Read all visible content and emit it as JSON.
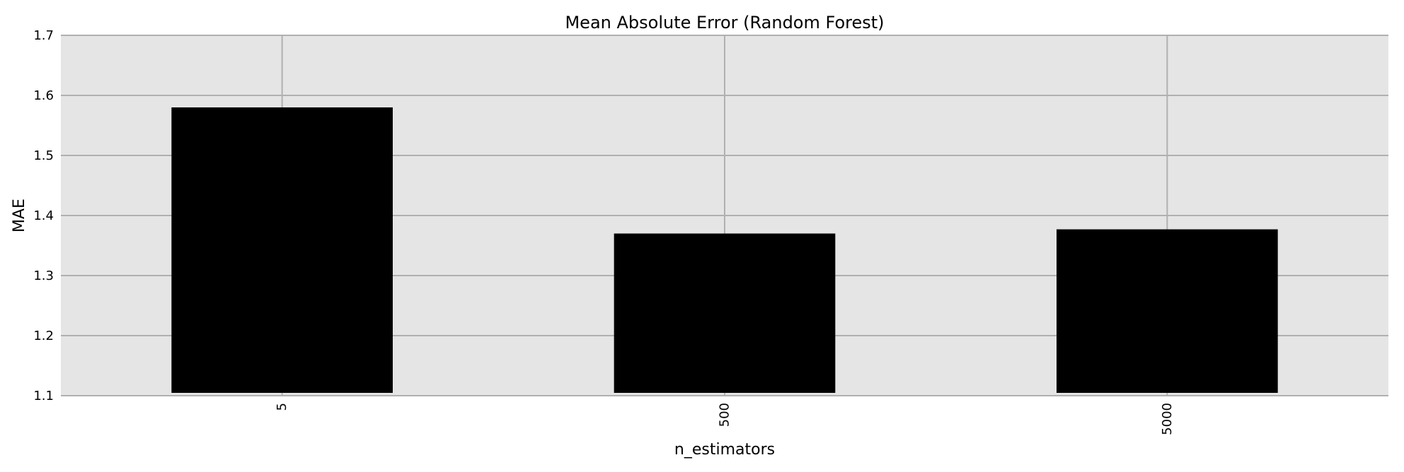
{
  "chart_data": {
    "type": "bar",
    "title": "Mean Absolute Error (Random Forest)",
    "xlabel": "n_estimators",
    "ylabel": "MAE",
    "categories": [
      "5",
      "500",
      "5000"
    ],
    "values": [
      1.58,
      1.37,
      1.377
    ],
    "ylim": [
      1.1,
      1.7
    ],
    "yticks": [
      "1.1",
      "1.2",
      "1.3",
      "1.4",
      "1.5",
      "1.6",
      "1.7"
    ],
    "grid": true,
    "legend": "none",
    "colors": {
      "bar": "#000000",
      "plot_background": "#e5e5e5",
      "grid": "#b0b0b0",
      "page_background": "#ffffff"
    }
  }
}
